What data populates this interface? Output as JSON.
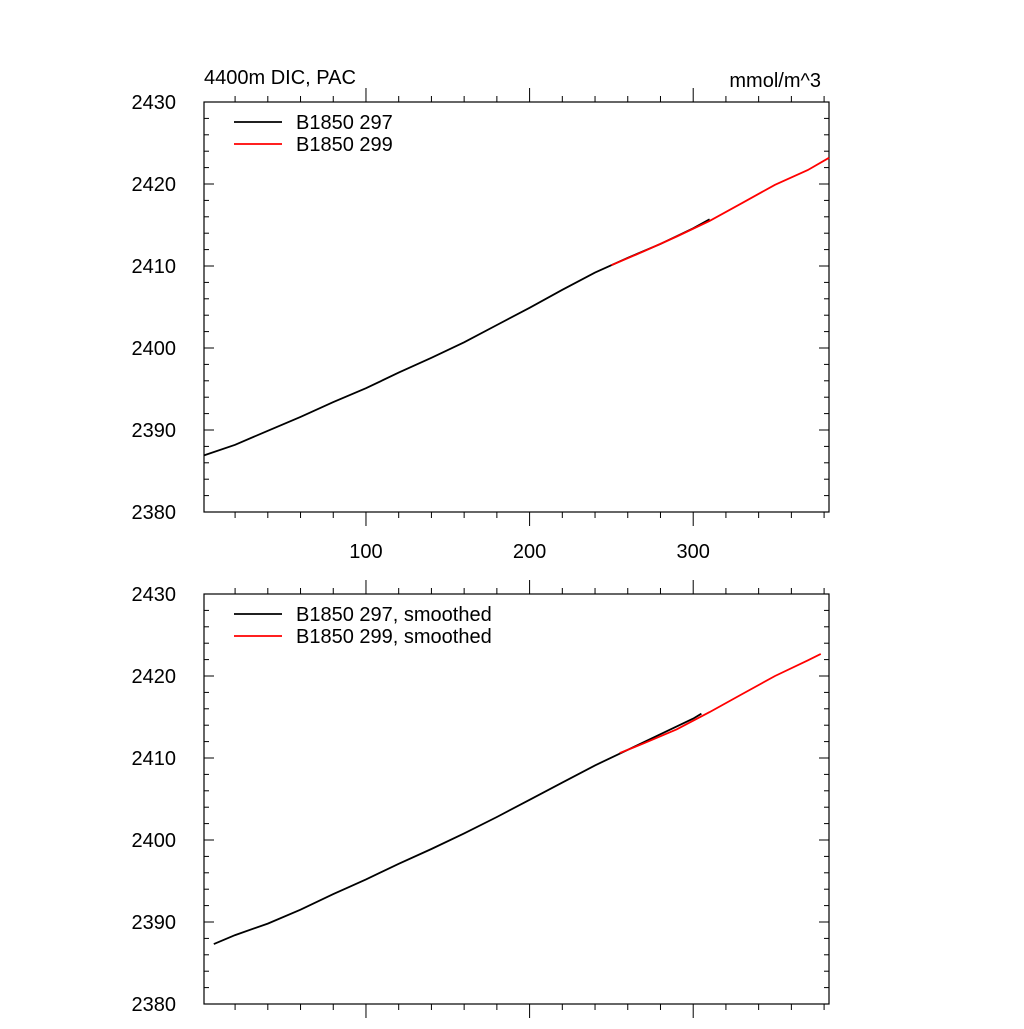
{
  "colors": {
    "series_297": "#000000",
    "series_299": "#ff0000",
    "axis": "#000000",
    "background": "#ffffff"
  },
  "chart_data": [
    {
      "type": "line",
      "title_left": "4400m DIC, PAC",
      "title_right": "mmol/m^3",
      "xlabel": "",
      "ylabel": "",
      "xlim": [
        1,
        383
      ],
      "ylim": [
        2380,
        2430
      ],
      "x_ticks": [
        100,
        200,
        300
      ],
      "x_tick_labels": [
        "100",
        "200",
        "300"
      ],
      "y_ticks": [
        2380,
        2390,
        2400,
        2410,
        2420,
        2430
      ],
      "y_tick_labels": [
        "2380",
        "2390",
        "2400",
        "2410",
        "2420",
        "2430"
      ],
      "grid": false,
      "legend_position": "top-left",
      "series": [
        {
          "name": "B1850 297",
          "color_key": "series_297",
          "x": [
            1,
            20,
            40,
            60,
            80,
            100,
            120,
            140,
            160,
            180,
            200,
            220,
            240,
            260,
            280,
            300,
            310
          ],
          "values": [
            2386.9,
            2388.2,
            2389.9,
            2391.6,
            2393.4,
            2395.1,
            2397.0,
            2398.8,
            2400.7,
            2402.8,
            2404.9,
            2407.1,
            2409.2,
            2411.0,
            2412.7,
            2414.6,
            2415.7
          ]
        },
        {
          "name": "B1850 299",
          "color_key": "series_299",
          "x": [
            250,
            270,
            290,
            310,
            330,
            350,
            370,
            383
          ],
          "values": [
            2410.1,
            2411.8,
            2413.6,
            2415.5,
            2417.7,
            2419.9,
            2421.7,
            2423.2
          ]
        }
      ]
    },
    {
      "type": "line",
      "xlabel": "",
      "ylabel": "",
      "xlim": [
        1,
        383
      ],
      "ylim": [
        2380,
        2430
      ],
      "x_ticks": [
        100,
        200,
        300
      ],
      "y_ticks": [
        2380,
        2390,
        2400,
        2410,
        2420,
        2430
      ],
      "y_tick_labels": [
        "2380",
        "2390",
        "2400",
        "2410",
        "2420",
        "2430"
      ],
      "grid": false,
      "legend_position": "top-left",
      "series": [
        {
          "name": "B1850 297, smoothed",
          "color_key": "series_297",
          "x": [
            7,
            20,
            40,
            60,
            80,
            100,
            120,
            140,
            160,
            180,
            200,
            220,
            240,
            260,
            280,
            300,
            305
          ],
          "values": [
            2387.3,
            2388.4,
            2389.8,
            2391.5,
            2393.4,
            2395.2,
            2397.1,
            2398.9,
            2400.8,
            2402.8,
            2404.9,
            2407.0,
            2409.1,
            2411.0,
            2412.9,
            2414.8,
            2415.4
          ]
        },
        {
          "name": "B1850 299, smoothed",
          "color_key": "series_299",
          "x": [
            255,
            270,
            290,
            310,
            330,
            350,
            370,
            378
          ],
          "values": [
            2410.6,
            2411.8,
            2413.5,
            2415.6,
            2417.8,
            2420.0,
            2421.9,
            2422.7
          ]
        }
      ]
    }
  ]
}
